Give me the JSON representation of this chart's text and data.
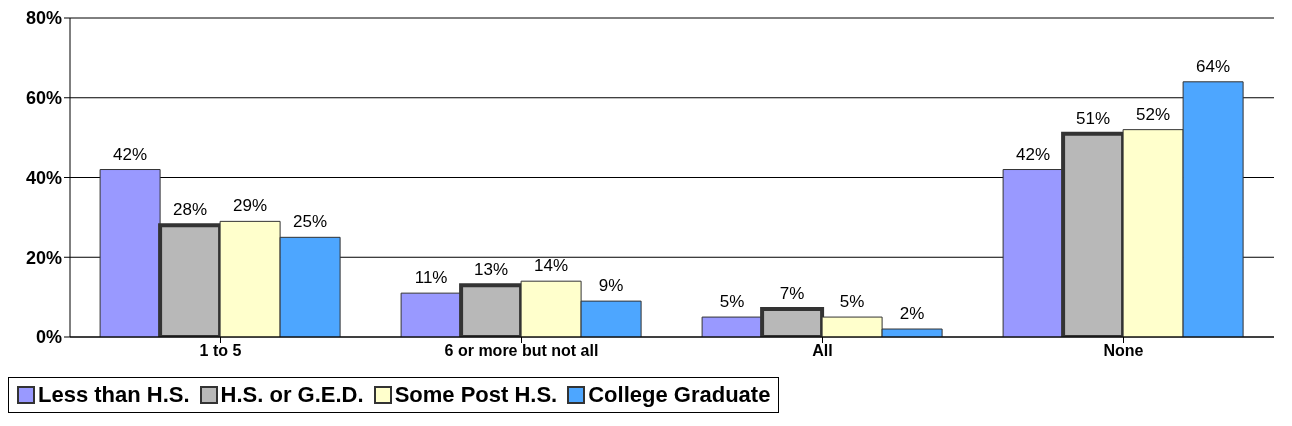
{
  "chart_data": {
    "type": "bar",
    "categories": [
      "1 to 5",
      "6 or more but not all",
      "All",
      "None"
    ],
    "series": [
      {
        "name": "Less than H.S.",
        "color": "#9999ff",
        "values": [
          42,
          11,
          5,
          42
        ],
        "value_labels": [
          "42%",
          "11%",
          "5%",
          "42%"
        ]
      },
      {
        "name": "H.S. or G.E.D.",
        "color": "#b8b8b8",
        "values": [
          28,
          13,
          7,
          51
        ],
        "value_labels": [
          "28%",
          "13%",
          "7%",
          "51%"
        ]
      },
      {
        "name": "Some Post H.S.",
        "color": "#ffffcc",
        "values": [
          29,
          14,
          5,
          52
        ],
        "value_labels": [
          "29%",
          "14%",
          "5%",
          "52%"
        ]
      },
      {
        "name": "College Graduate",
        "color": "#4da6ff",
        "values": [
          25,
          9,
          2,
          64
        ],
        "value_labels": [
          "25%",
          "9%",
          "2%",
          "64%"
        ]
      }
    ],
    "ylim": [
      0,
      80
    ],
    "yticks": [
      {
        "value": 0,
        "label": "0%"
      },
      {
        "value": 20,
        "label": "20%"
      },
      {
        "value": 40,
        "label": "40%"
      },
      {
        "value": 60,
        "label": "60%"
      },
      {
        "value": 80,
        "label": "80%"
      }
    ],
    "grid": "y",
    "legend": "bottom"
  }
}
